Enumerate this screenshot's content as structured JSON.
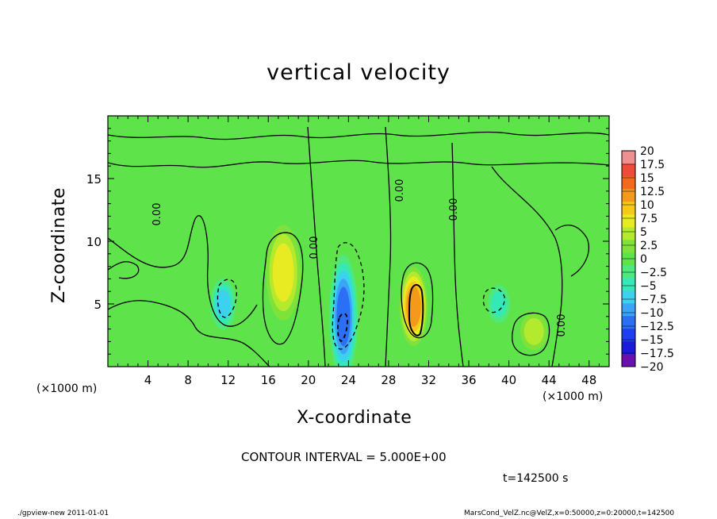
{
  "chart_data": {
    "type": "heatmap",
    "title": "vertical velocity",
    "xlabel": "X-coordinate",
    "ylabel": "Z-coordinate",
    "x_unit": "(×1000 m)",
    "xlim": [
      0,
      50
    ],
    "ylim": [
      0,
      20
    ],
    "xticks": [
      4,
      8,
      12,
      16,
      20,
      24,
      28,
      32,
      36,
      40,
      44,
      48
    ],
    "yticks": [
      5,
      10,
      15
    ],
    "colorbar": {
      "levels": [
        -20,
        -17.5,
        -15,
        -12.5,
        -10,
        -7.5,
        -5,
        -2.5,
        0,
        2.5,
        5,
        7.5,
        10,
        12.5,
        15,
        17.5,
        20
      ],
      "labels": [
        "20",
        "17.5",
        "15",
        "12.5",
        "10",
        "7.5",
        "5",
        "2.5",
        "0",
        "−2.5",
        "−5",
        "−7.5",
        "−10",
        "−12.5",
        "−15",
        "−17.5",
        "−20"
      ],
      "colors": [
        "#6a0fb0",
        "#1a1ad8",
        "#1e3ff0",
        "#2a6ff5",
        "#3aa4f7",
        "#3dd1f0",
        "#35e8b8",
        "#4ee87f",
        "#5ee34a",
        "#7fe23a",
        "#b4ea2e",
        "#e8ea22",
        "#f5c81a",
        "#f49a1a",
        "#f26a1a",
        "#ee4b3a",
        "#f08f8f"
      ]
    },
    "contour_label": "0.00",
    "features": [
      {
        "x": 17.5,
        "z": 7.5,
        "value": 11
      },
      {
        "x": 30.5,
        "z": 4.8,
        "value": 14
      },
      {
        "x": 42.5,
        "z": 2.8,
        "value": 7
      },
      {
        "x": 23.5,
        "z": 4.0,
        "value": -13
      },
      {
        "x": 11.5,
        "z": 5.0,
        "value": -8
      },
      {
        "x": 39.0,
        "z": 5.0,
        "value": -6
      }
    ],
    "contour_interval": "CONTOUR INTERVAL = 5.000E+00",
    "time_label": "t=142500 s"
  },
  "footer": {
    "left": "./gpview-new  2011-01-01",
    "right": "MarsCond_VelZ.nc@VelZ,x=0:50000,z=0:20000,t=142500"
  }
}
